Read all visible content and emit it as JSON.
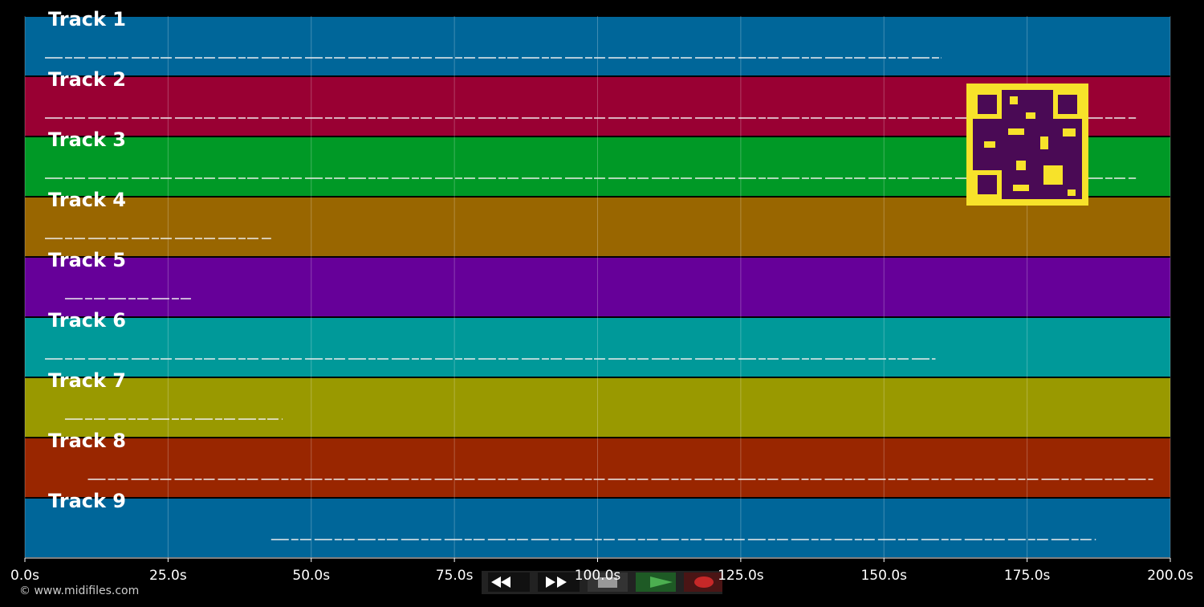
{
  "timeline": {
    "xlim": [
      0,
      200
    ],
    "xticks": [
      {
        "value": 0,
        "label": "0.0s"
      },
      {
        "value": 25,
        "label": "25.0s"
      },
      {
        "value": 50,
        "label": "50.0s"
      },
      {
        "value": 75,
        "label": "75.0s"
      },
      {
        "value": 100,
        "label": "100.0s"
      },
      {
        "value": 125,
        "label": "125.0s"
      },
      {
        "value": 150,
        "label": "150.0s"
      },
      {
        "value": 175,
        "label": "175.0s"
      },
      {
        "value": 200,
        "label": "200.0s"
      }
    ]
  },
  "tracks": [
    {
      "name": "Track 1",
      "color": "#006699",
      "span": [
        3.5,
        160
      ]
    },
    {
      "name": "Track 2",
      "color": "#990033",
      "span": [
        3.5,
        194
      ]
    },
    {
      "name": "Track 3",
      "color": "#009926",
      "span": [
        3.5,
        194
      ]
    },
    {
      "name": "Track 4",
      "color": "#996600",
      "span": [
        3.5,
        43
      ]
    },
    {
      "name": "Track 5",
      "color": "#660099",
      "span": [
        7,
        29
      ]
    },
    {
      "name": "Track 6",
      "color": "#009999",
      "span": [
        3.5,
        159
      ]
    },
    {
      "name": "Track 7",
      "color": "#999900",
      "span": [
        7,
        45
      ]
    },
    {
      "name": "Track 8",
      "color": "#992600",
      "span": [
        11,
        197
      ]
    },
    {
      "name": "Track 9",
      "color": "#006699",
      "span": [
        43,
        187
      ]
    }
  ],
  "footer": "© www.midifiles.com"
}
